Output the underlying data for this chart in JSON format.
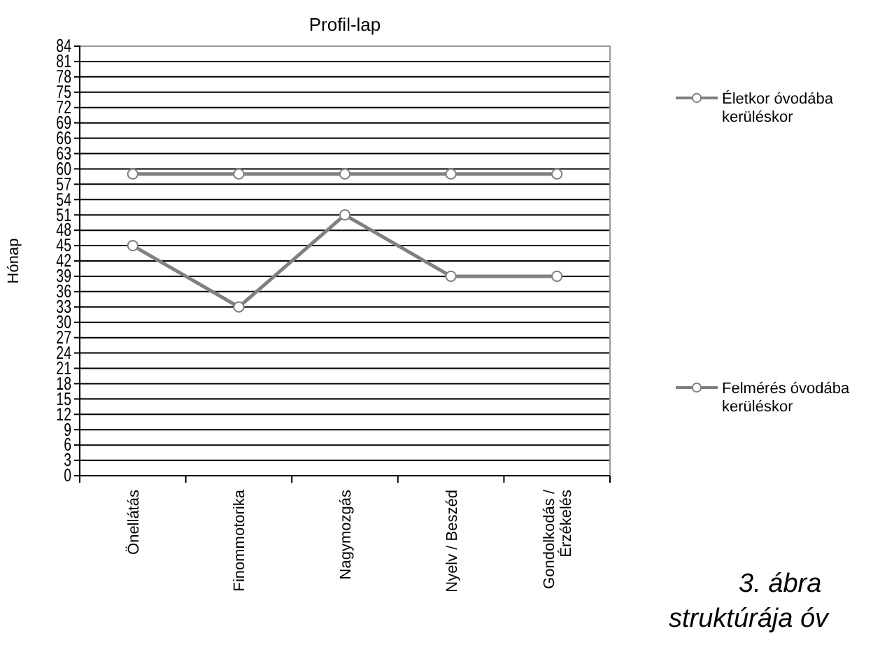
{
  "chart_data": {
    "type": "line",
    "title": "Profil-lap",
    "ylabel": "Hónap",
    "categories": [
      "Önellátás",
      "Finommotorika",
      "Nagymozgás",
      "Nyelv / Beszéd",
      "Gondolkodás / Érzékelés"
    ],
    "series": [
      {
        "name": "Életkor óvodába kerüléskor",
        "color": "#808080",
        "values": [
          59,
          59,
          59,
          59,
          59
        ]
      },
      {
        "name": "Felmérés óvodába kerüléskor",
        "color": "#808080",
        "values": [
          45,
          33,
          51,
          39,
          39
        ]
      }
    ],
    "ylim": [
      0,
      84
    ],
    "yticks": [
      0,
      3,
      6,
      9,
      12,
      15,
      18,
      21,
      24,
      27,
      30,
      33,
      36,
      39,
      42,
      45,
      48,
      51,
      54,
      57,
      60,
      63,
      66,
      69,
      72,
      75,
      78,
      81,
      84
    ],
    "grid": "y",
    "legend": "right",
    "marker": "circle",
    "line_style": "solid",
    "annotations": [
      "3. ábra",
      "struktúrája óv"
    ]
  }
}
